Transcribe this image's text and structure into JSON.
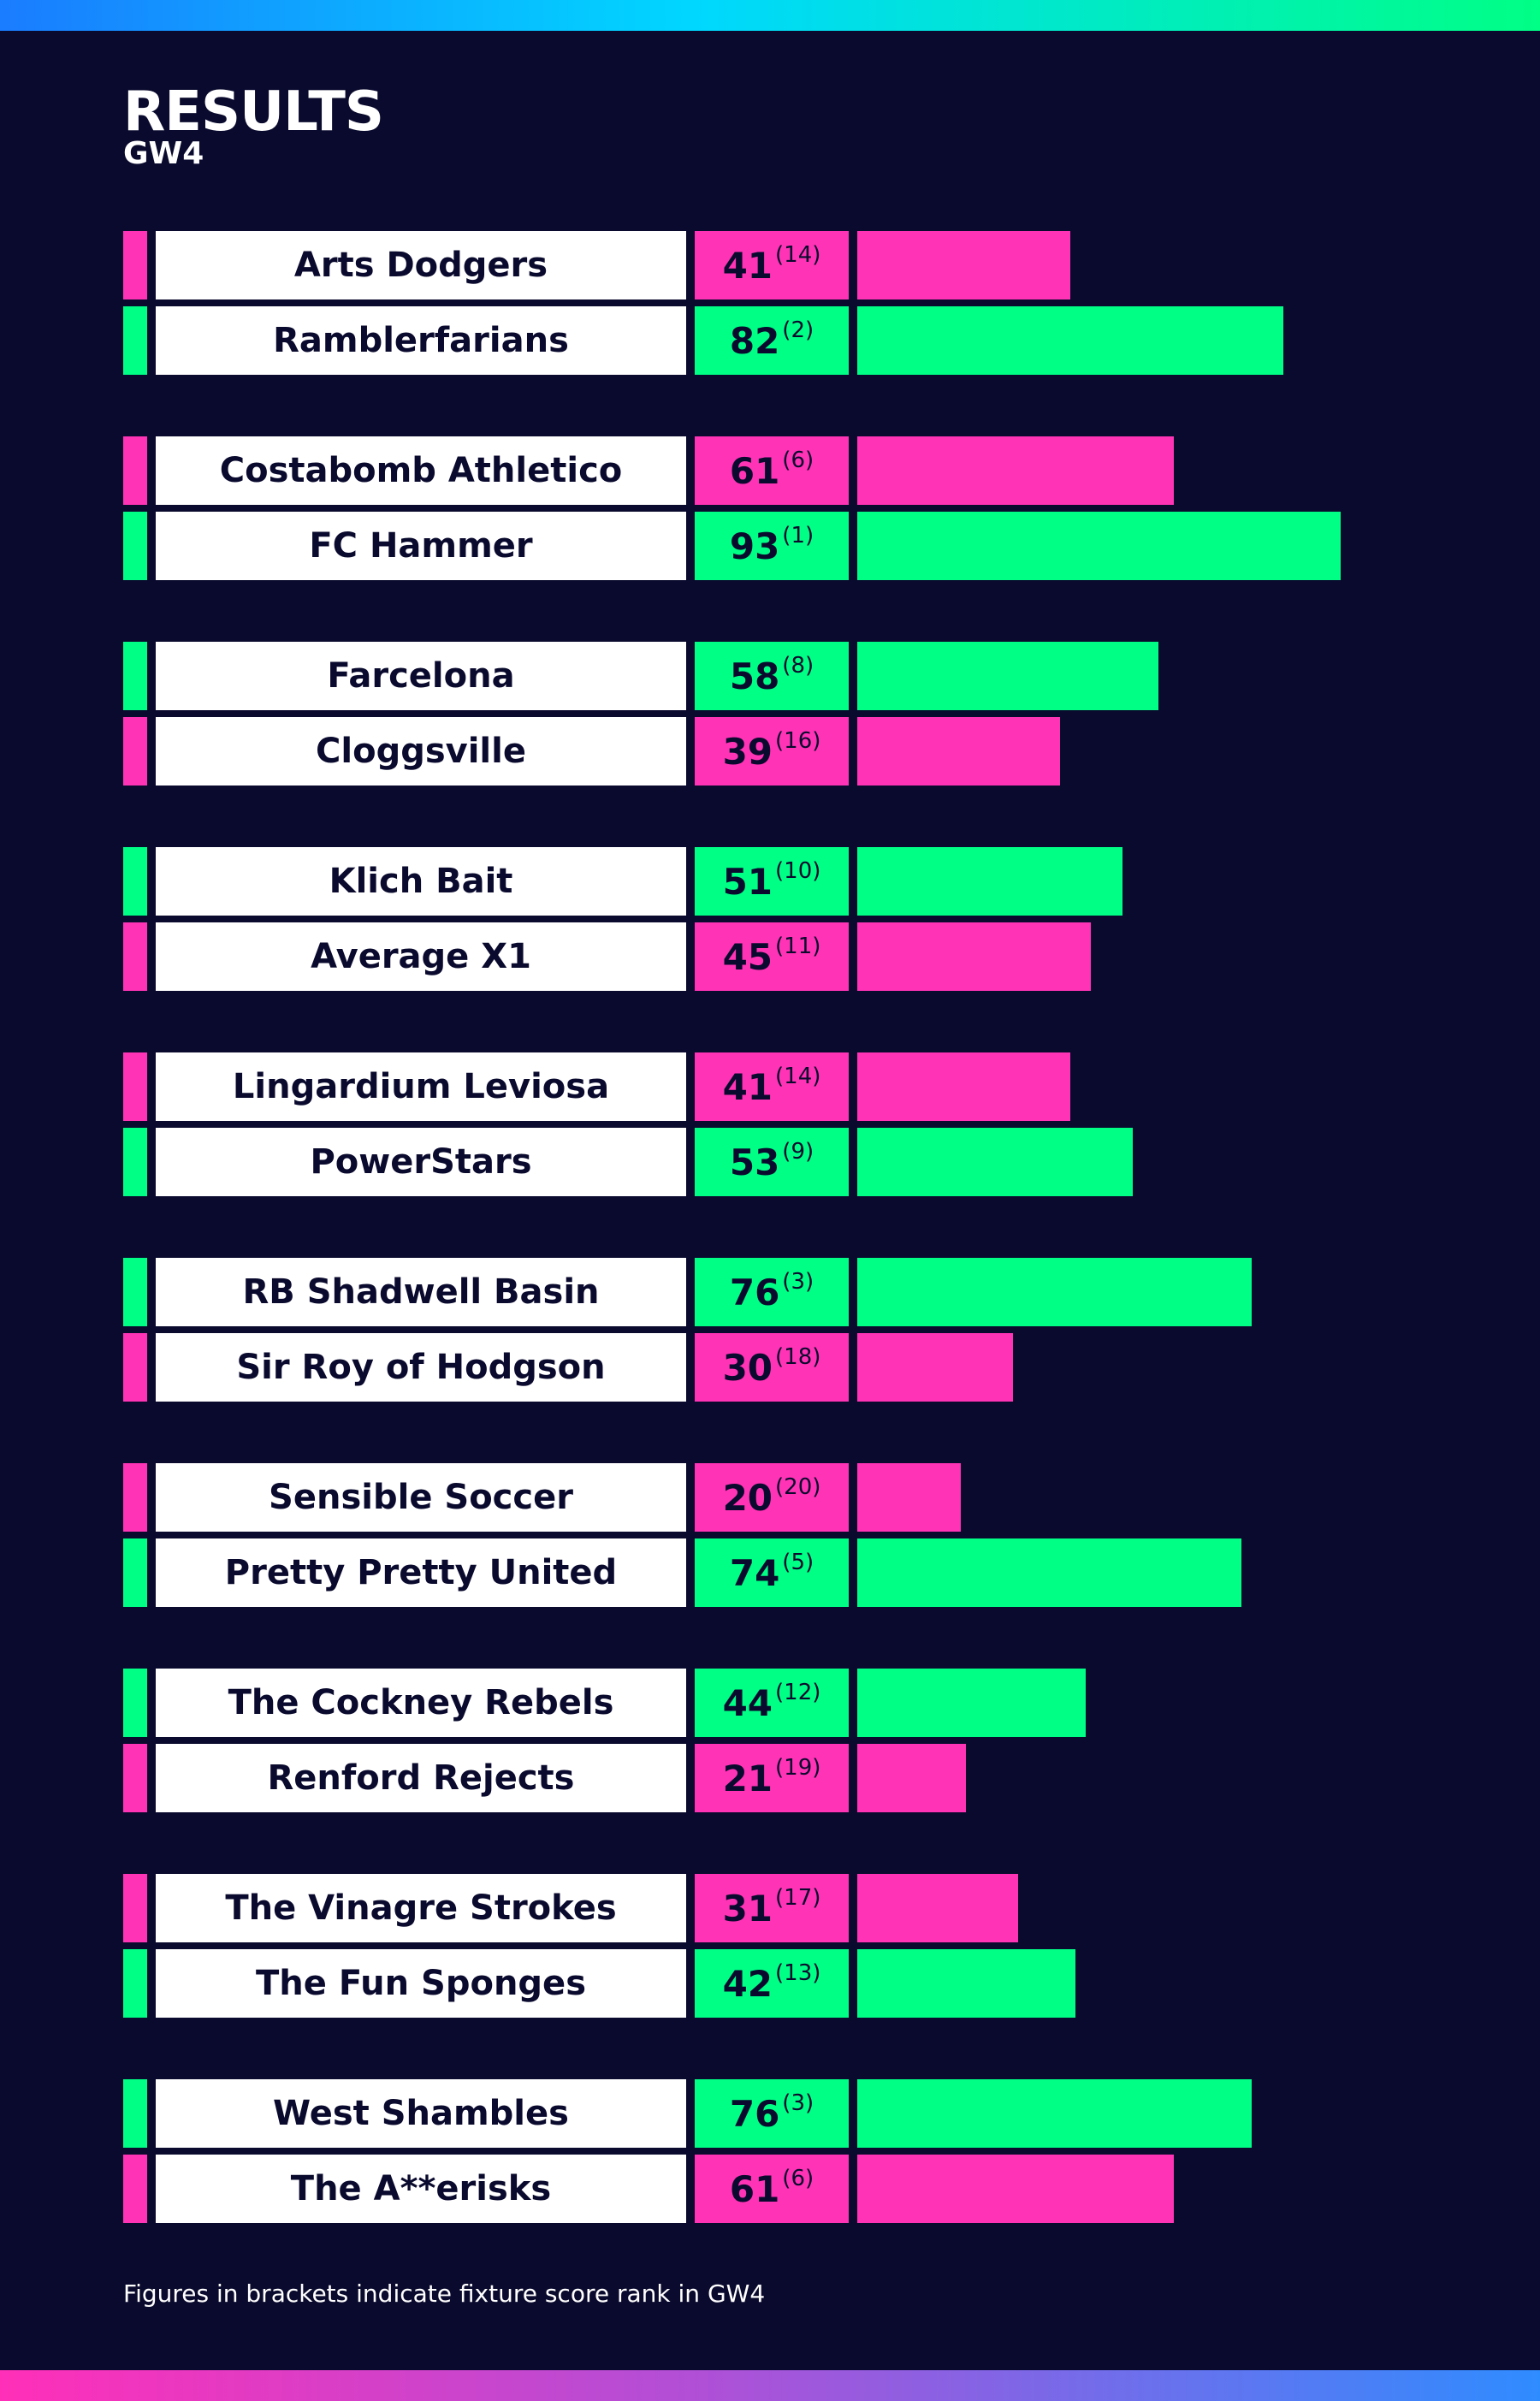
{
  "header": {
    "title": "RESULTS",
    "subtitle": "GW4"
  },
  "footnote": "Figures in brackets indicate fixture score rank in GW4",
  "colors": {
    "background": "#0a0a2e",
    "winner": "#00ff85",
    "loser": "#ff33b5",
    "name_box": "#ffffff",
    "text_dark": "#0a0a2e"
  },
  "chart_data": {
    "type": "bar",
    "orientation": "horizontal",
    "title": "RESULTS",
    "subtitle": "GW4",
    "xlim": [
      0,
      100
    ],
    "grid": false,
    "fixtures": [
      {
        "teams": [
          {
            "name": "Arts Dodgers",
            "score": 41,
            "rank": "(14)"
          },
          {
            "name": "Ramblerfarians",
            "score": 82,
            "rank": "(2)"
          }
        ]
      },
      {
        "teams": [
          {
            "name": "Costabomb Athletico",
            "score": 61,
            "rank": "(6)"
          },
          {
            "name": "FC Hammer",
            "score": 93,
            "rank": "(1)"
          }
        ]
      },
      {
        "teams": [
          {
            "name": "Farcelona",
            "score": 58,
            "rank": "(8)"
          },
          {
            "name": "Cloggsville",
            "score": 39,
            "rank": "(16)"
          }
        ]
      },
      {
        "teams": [
          {
            "name": "Klich Bait",
            "score": 51,
            "rank": "(10)"
          },
          {
            "name": "Average X1",
            "score": 45,
            "rank": "(11)"
          }
        ]
      },
      {
        "teams": [
          {
            "name": "Lingardium Leviosa",
            "score": 41,
            "rank": "(14)"
          },
          {
            "name": "PowerStars",
            "score": 53,
            "rank": "(9)"
          }
        ]
      },
      {
        "teams": [
          {
            "name": "RB Shadwell Basin",
            "score": 76,
            "rank": "(3)"
          },
          {
            "name": "Sir Roy of Hodgson",
            "score": 30,
            "rank": "(18)"
          }
        ]
      },
      {
        "teams": [
          {
            "name": "Sensible Soccer",
            "score": 20,
            "rank": "(20)"
          },
          {
            "name": "Pretty Pretty United",
            "score": 74,
            "rank": "(5)"
          }
        ]
      },
      {
        "teams": [
          {
            "name": "The Cockney Rebels",
            "score": 44,
            "rank": "(12)"
          },
          {
            "name": "Renford Rejects",
            "score": 21,
            "rank": "(19)"
          }
        ]
      },
      {
        "teams": [
          {
            "name": "The Vinagre Strokes",
            "score": 31,
            "rank": "(17)"
          },
          {
            "name": "The Fun Sponges",
            "score": 42,
            "rank": "(13)"
          }
        ]
      },
      {
        "teams": [
          {
            "name": "West Shambles",
            "score": 76,
            "rank": "(3)"
          },
          {
            "name": "The A**erisks",
            "score": 61,
            "rank": "(6)"
          }
        ]
      }
    ]
  }
}
